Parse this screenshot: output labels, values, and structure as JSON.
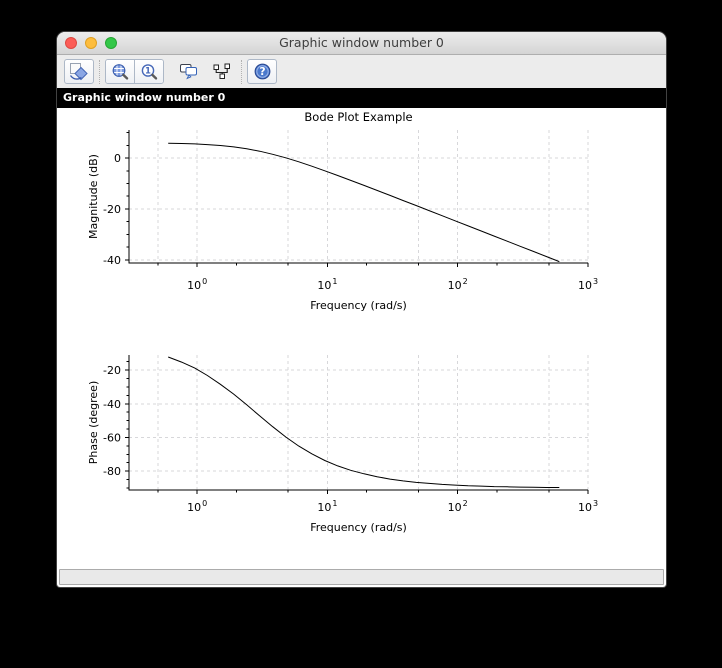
{
  "window": {
    "title": "Graphic window number 0",
    "infobar_text": "Graphic window number 0"
  },
  "toolbar": {
    "icons": [
      "rotate",
      "zoom-area",
      "zoom-original",
      "datatips",
      "edit-graph",
      "help"
    ]
  },
  "statusbar": {
    "text": ""
  },
  "chart_data": [
    {
      "type": "line",
      "title": "Bode Plot Example",
      "xlabel": "Frequency (rad/s)",
      "ylabel": "Magnitude (dB)",
      "xscale": "log",
      "xlim": [
        0.3,
        1000
      ],
      "ylim": [
        -41.2,
        11
      ],
      "grid": true,
      "legend": "none",
      "xticks": {
        "major": [
          1,
          10,
          100,
          1000
        ],
        "major_labels": [
          "10^0",
          "10^1",
          "10^2",
          "10^3"
        ],
        "minor": [
          0.5,
          2,
          5,
          20,
          50,
          200,
          500
        ],
        "grid": [
          0.5,
          1,
          5,
          10,
          50,
          100,
          500,
          1000
        ]
      },
      "yticks": {
        "major": [
          0,
          -20,
          -40
        ],
        "minor_step": 5
      },
      "series": [
        {
          "name": "magnitude",
          "x": [
            0.6,
            0.76,
            0.96,
            1.2,
            1.51,
            1.91,
            2.4,
            3.02,
            3.8,
            4.79,
            6.03,
            7.59,
            9.55,
            12.0,
            15.1,
            19.1,
            24.0,
            30.2,
            38.0,
            47.9,
            60.3,
            75.9,
            95.5,
            120.2,
            151.4,
            190.5,
            239.9,
            302.0,
            380.2,
            478.6,
            602.6
          ],
          "y": [
            5.82,
            5.71,
            5.54,
            5.28,
            4.91,
            4.37,
            3.63,
            2.67,
            1.48,
            0.09,
            -1.49,
            -3.19,
            -5.0,
            -6.87,
            -8.79,
            -10.73,
            -12.7,
            -14.67,
            -16.66,
            -18.65,
            -20.65,
            -22.64,
            -24.64,
            -26.64,
            -28.64,
            -30.64,
            -32.64,
            -34.64,
            -36.64,
            -38.64,
            -40.64
          ]
        }
      ]
    },
    {
      "type": "line",
      "title": "",
      "xlabel": "Frequency (rad/s)",
      "ylabel": "Phase (degree)",
      "xscale": "log",
      "xlim": [
        0.3,
        1000
      ],
      "ylim": [
        -91.2,
        -11
      ],
      "grid": true,
      "legend": "none",
      "xticks": {
        "major": [
          1,
          10,
          100,
          1000
        ],
        "major_labels": [
          "10^0",
          "10^1",
          "10^2",
          "10^3"
        ],
        "minor": [
          0.5,
          2,
          5,
          20,
          50,
          200,
          500
        ],
        "grid": [
          0.5,
          1,
          5,
          10,
          50,
          100,
          500,
          1000
        ]
      },
      "yticks": {
        "major": [
          -20,
          -40,
          -60,
          -80
        ],
        "minor_step": 5
      },
      "series": [
        {
          "name": "phase",
          "x": [
            0.6,
            0.76,
            0.96,
            1.2,
            1.51,
            1.91,
            2.4,
            3.02,
            3.8,
            4.79,
            6.03,
            7.59,
            9.55,
            12.0,
            15.1,
            19.1,
            24.0,
            30.2,
            38.0,
            47.9,
            60.3,
            75.9,
            95.5,
            120.2,
            151.4,
            190.5,
            239.9,
            302.0,
            380.2,
            478.6,
            602.6
          ],
          "y": [
            -12.2,
            -15.2,
            -18.8,
            -23.2,
            -28.4,
            -34.2,
            -40.6,
            -47.2,
            -53.6,
            -59.7,
            -65.1,
            -69.7,
            -73.7,
            -76.9,
            -79.5,
            -81.6,
            -83.3,
            -84.7,
            -85.8,
            -86.7,
            -87.3,
            -87.9,
            -88.3,
            -88.7,
            -88.9,
            -89.2,
            -89.3,
            -89.5,
            -89.6,
            -89.7,
            -89.7
          ]
        }
      ]
    }
  ]
}
